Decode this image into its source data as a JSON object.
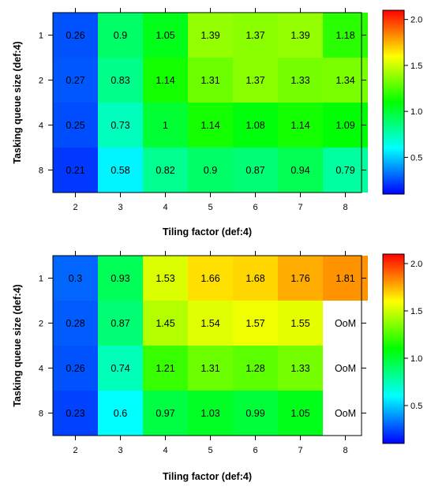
{
  "chart_data": [
    {
      "type": "heatmap",
      "xlabel": "Tiling factor (def:4)",
      "ylabel": "Tasking queue size (def:4)",
      "x": [
        "2",
        "3",
        "4",
        "5",
        "6",
        "7",
        "8"
      ],
      "y": [
        "1",
        "2",
        "4",
        "8"
      ],
      "cells": [
        [
          "0.26",
          "0.9",
          "1.05",
          "1.39",
          "1.37",
          "1.39",
          "1.18"
        ],
        [
          "0.27",
          "0.83",
          "1.14",
          "1.31",
          "1.37",
          "1.33",
          "1.34"
        ],
        [
          "0.25",
          "0.73",
          "1",
          "1.14",
          "1.08",
          "1.14",
          "1.09"
        ],
        [
          "0.21",
          "0.58",
          "0.82",
          "0.9",
          "0.87",
          "0.94",
          "0.79"
        ]
      ],
      "colorbar": {
        "ticks": [
          "2.0",
          "1.5",
          "1.0",
          "0.5"
        ],
        "range": [
          0.1,
          2.1
        ]
      },
      "grid": false
    },
    {
      "type": "heatmap",
      "xlabel": "Tiling factor (def:4)",
      "ylabel": "Tasking queue size (def:4)",
      "x": [
        "2",
        "3",
        "4",
        "5",
        "6",
        "7",
        "8"
      ],
      "y": [
        "1",
        "2",
        "4",
        "8"
      ],
      "cells": [
        [
          "0.3",
          "0.93",
          "1.53",
          "1.66",
          "1.68",
          "1.76",
          "1.81"
        ],
        [
          "0.28",
          "0.87",
          "1.45",
          "1.54",
          "1.57",
          "1.55",
          "OoM"
        ],
        [
          "0.26",
          "0.74",
          "1.21",
          "1.31",
          "1.28",
          "1.33",
          "OoM"
        ],
        [
          "0.23",
          "0.6",
          "0.97",
          "1.03",
          "0.99",
          "1.05",
          "OoM"
        ]
      ],
      "colorbar": {
        "ticks": [
          "2.0",
          "1.5",
          "1.0",
          "0.5"
        ],
        "range": [
          0.1,
          2.1
        ]
      },
      "grid": false
    }
  ]
}
